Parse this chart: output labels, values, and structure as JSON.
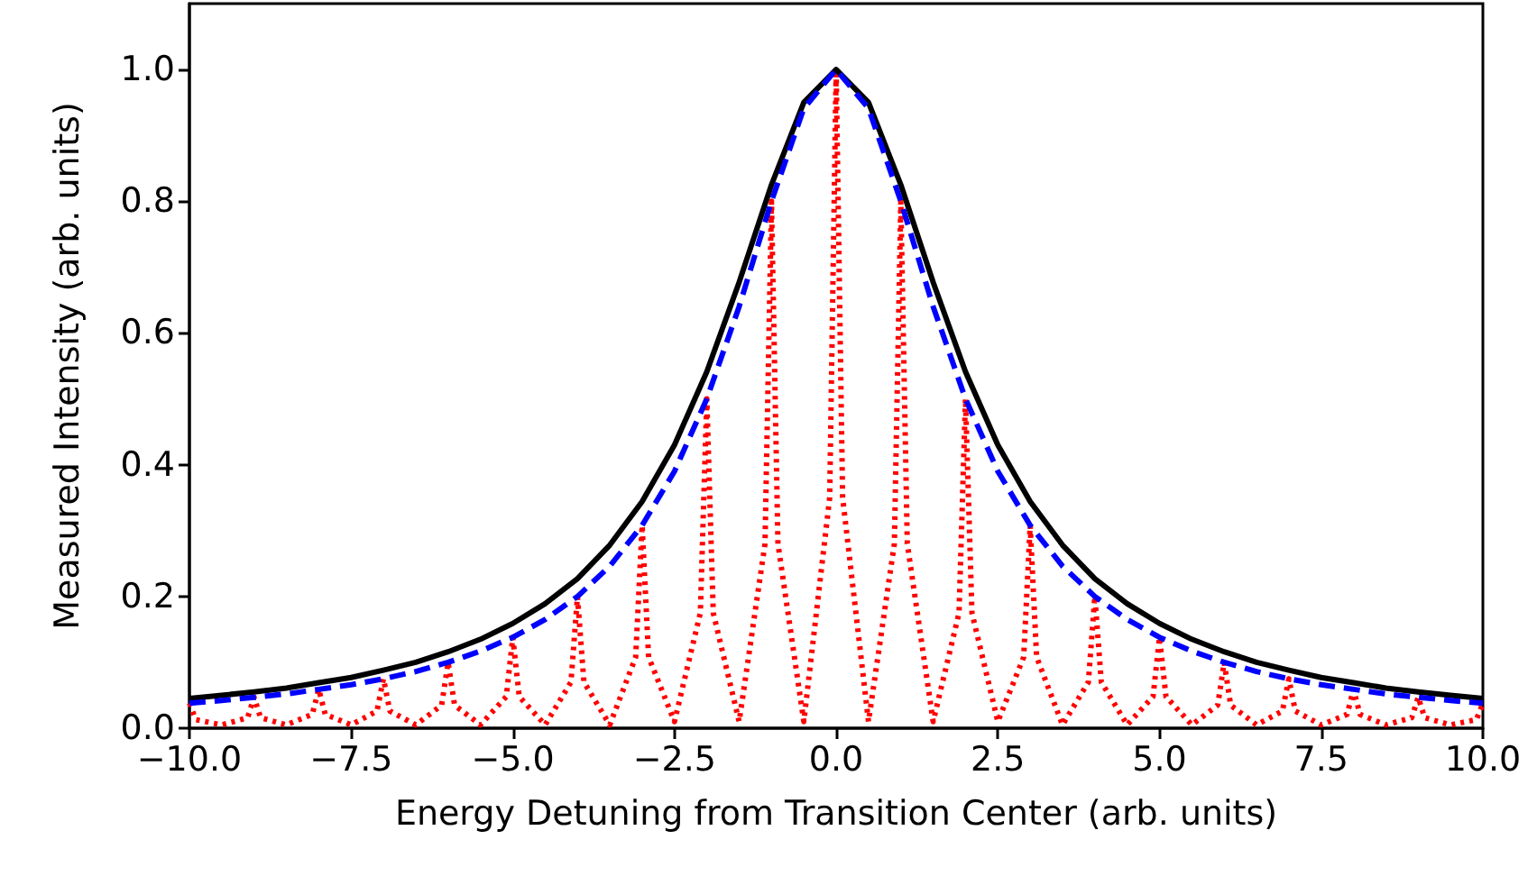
{
  "chart_data": {
    "type": "line",
    "xlabel": "Energy Detuning from Transition Center (arb. units)",
    "ylabel": "Measured Intensity (arb. units)",
    "xlim": [
      -10,
      10
    ],
    "ylim": [
      0,
      1.1
    ],
    "xticks": [
      {
        "value": -10,
        "label": "−10.0"
      },
      {
        "value": -7.5,
        "label": "−7.5"
      },
      {
        "value": -5,
        "label": "−5.0"
      },
      {
        "value": -2.5,
        "label": "−2.5"
      },
      {
        "value": 0,
        "label": "0.0"
      },
      {
        "value": 2.5,
        "label": "2.5"
      },
      {
        "value": 5,
        "label": "5.0"
      },
      {
        "value": 7.5,
        "label": "7.5"
      },
      {
        "value": 10,
        "label": "10.0"
      }
    ],
    "yticks": [
      {
        "value": 0,
        "label": "0.0"
      },
      {
        "value": 0.2,
        "label": "0.2"
      },
      {
        "value": 0.4,
        "label": "0.4"
      },
      {
        "value": 0.6,
        "label": "0.6"
      },
      {
        "value": 0.8,
        "label": "0.8"
      },
      {
        "value": 1.0,
        "label": "1.0"
      }
    ],
    "grid": false,
    "marker": "none",
    "series": [
      {
        "color": "#ff0000",
        "line_style": "dotted",
        "x": [
          -10,
          -9.9,
          -9.5,
          -9.1,
          -9,
          -8.9,
          -8.5,
          -8.1,
          -8,
          -7.9,
          -7.5,
          -7.1,
          -7,
          -6.9,
          -6.5,
          -6.1,
          -6,
          -5.9,
          -5.5,
          -5.1,
          -5,
          -4.9,
          -4.5,
          -4.1,
          -4,
          -3.9,
          -3.5,
          -3.1,
          -3,
          -2.9,
          -2.5,
          -2.1,
          -2,
          -1.9,
          -1.5,
          -1.1,
          -1,
          -0.9,
          -0.5,
          -0.1,
          0,
          0.1,
          0.5,
          0.9,
          1,
          1.1,
          1.5,
          1.9,
          2,
          2.1,
          2.5,
          2.9,
          3,
          3.1,
          3.5,
          3.9,
          4,
          4.1,
          4.5,
          4.9,
          5,
          5.1,
          5.5,
          5.9,
          6,
          6.1,
          6.5,
          6.9,
          7,
          7.1,
          7.5,
          7.9,
          8,
          8.1,
          8.5,
          8.9,
          9,
          9.1,
          9.5,
          9.9,
          10
        ],
        "values": [
          0.038,
          0.013,
          0.005,
          0.016,
          0.047,
          0.016,
          0.005,
          0.021,
          0.059,
          0.021,
          0.005,
          0.026,
          0.075,
          0.026,
          0.005,
          0.035,
          0.1,
          0.035,
          0.005,
          0.048,
          0.138,
          0.048,
          0.005,
          0.07,
          0.2,
          0.07,
          0.005,
          0.108,
          0.308,
          0.108,
          0.01,
          0.175,
          0.5,
          0.175,
          0.01,
          0.28,
          0.8,
          0.28,
          0.01,
          0.35,
          1,
          0.35,
          0.01,
          0.28,
          0.8,
          0.28,
          0.01,
          0.175,
          0.5,
          0.175,
          0.01,
          0.108,
          0.308,
          0.108,
          0.005,
          0.07,
          0.2,
          0.07,
          0.005,
          0.048,
          0.138,
          0.048,
          0.005,
          0.035,
          0.1,
          0.035,
          0.005,
          0.026,
          0.075,
          0.026,
          0.005,
          0.021,
          0.059,
          0.021,
          0.005,
          0.016,
          0.047,
          0.016,
          0.005,
          0.013,
          0.038
        ]
      },
      {
        "color": "#000000",
        "line_style": "solid",
        "x": [
          -10,
          -9.5,
          -9,
          -8.5,
          -8,
          -7.5,
          -7,
          -6.5,
          -6,
          -5.5,
          -5,
          -4.5,
          -4,
          -3.5,
          -3,
          -2.5,
          -2,
          -1.5,
          -1,
          -0.5,
          0,
          0.5,
          1,
          1.5,
          2,
          2.5,
          3,
          3.5,
          4,
          4.5,
          5,
          5.5,
          6,
          6.5,
          7,
          7.5,
          8,
          8.5,
          9,
          9.5,
          10
        ],
        "values": [
          0.045,
          0.05,
          0.055,
          0.061,
          0.069,
          0.077,
          0.088,
          0.1,
          0.116,
          0.135,
          0.159,
          0.189,
          0.227,
          0.278,
          0.344,
          0.43,
          0.541,
          0.677,
          0.825,
          0.95,
          1,
          0.95,
          0.825,
          0.677,
          0.541,
          0.43,
          0.344,
          0.278,
          0.227,
          0.189,
          0.159,
          0.135,
          0.116,
          0.1,
          0.088,
          0.077,
          0.069,
          0.061,
          0.055,
          0.05,
          0.045
        ]
      },
      {
        "color": "#0000ff",
        "line_style": "dashed",
        "x": [
          -10,
          -9.5,
          -9,
          -8.5,
          -8,
          -7.5,
          -7,
          -6.5,
          -6,
          -5.5,
          -5,
          -4.5,
          -4,
          -3.5,
          -3,
          -2.5,
          -2,
          -1.5,
          -1,
          -0.5,
          0,
          0.5,
          1,
          1.5,
          2,
          2.5,
          3,
          3.5,
          4,
          4.5,
          5,
          5.5,
          6,
          6.5,
          7,
          7.5,
          8,
          8.5,
          9,
          9.5,
          10
        ],
        "values": [
          0.038,
          0.042,
          0.047,
          0.052,
          0.059,
          0.066,
          0.075,
          0.086,
          0.1,
          0.117,
          0.138,
          0.165,
          0.2,
          0.246,
          0.308,
          0.39,
          0.5,
          0.64,
          0.8,
          0.941,
          1,
          0.941,
          0.8,
          0.64,
          0.5,
          0.39,
          0.308,
          0.246,
          0.2,
          0.165,
          0.138,
          0.117,
          0.1,
          0.086,
          0.075,
          0.066,
          0.059,
          0.052,
          0.047,
          0.042,
          0.038
        ]
      }
    ]
  }
}
